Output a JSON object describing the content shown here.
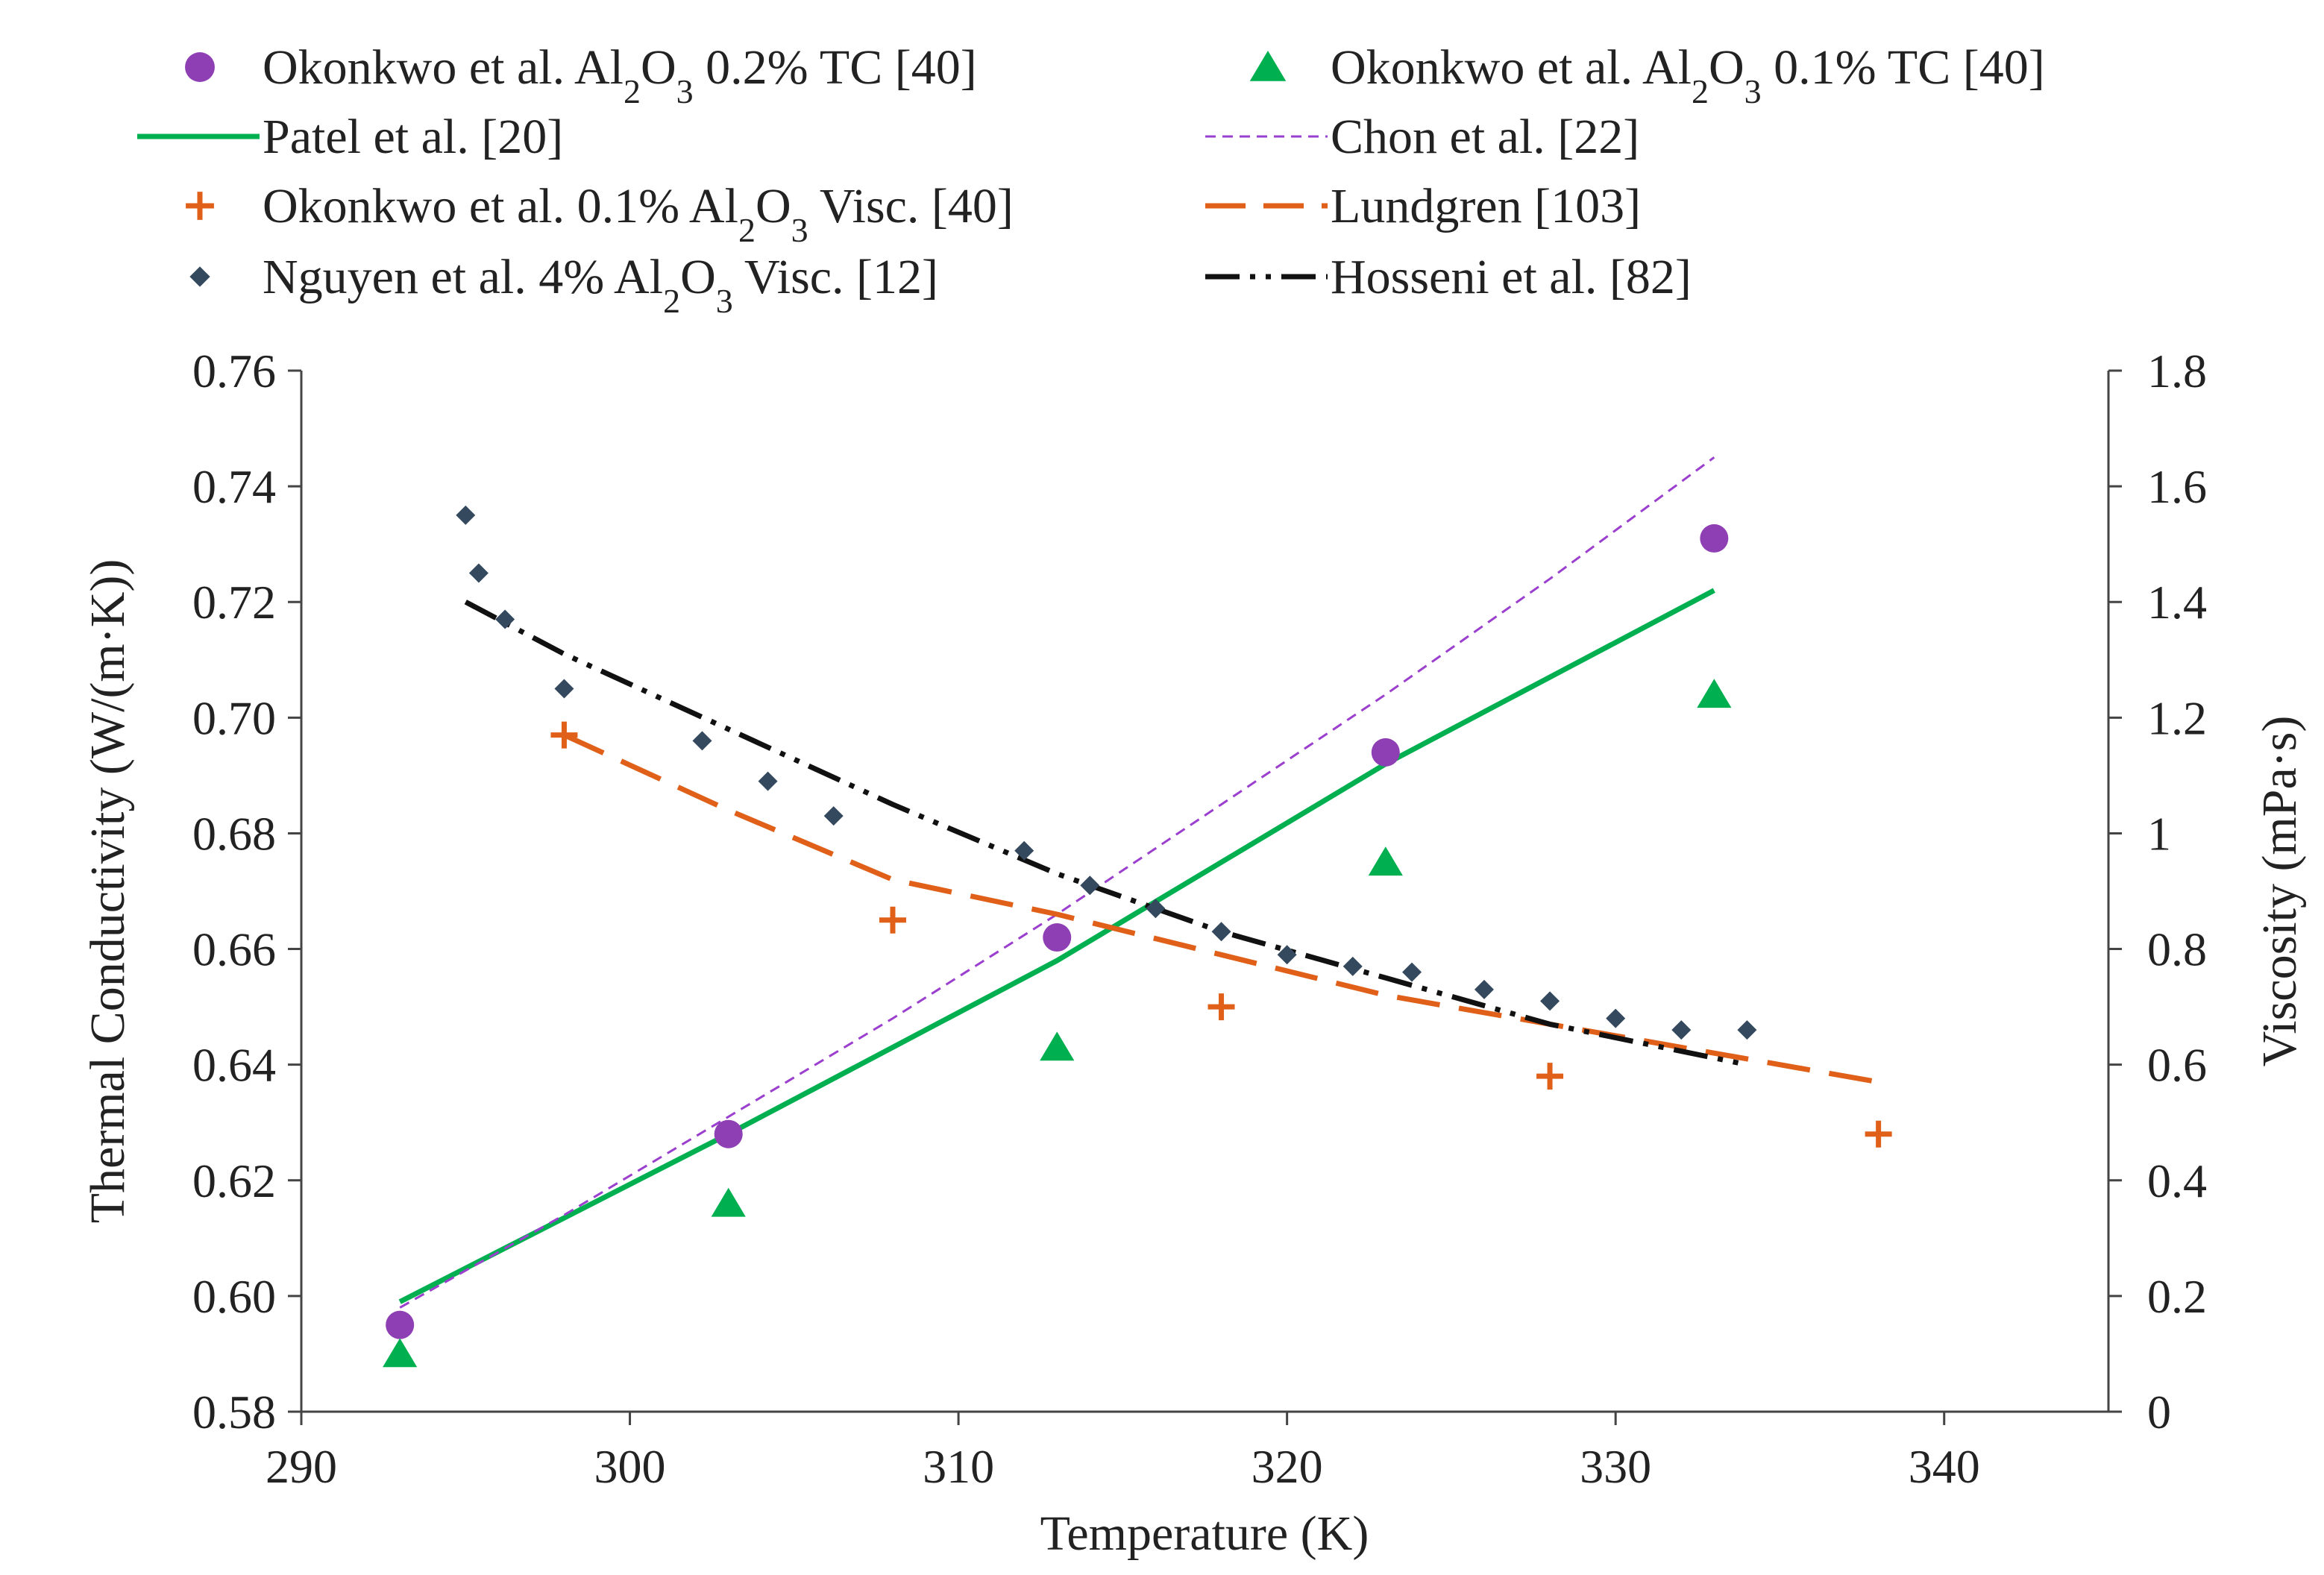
{
  "chart_data": {
    "type": "scatter",
    "xlabel": "Temperature (K)",
    "ylabel_left": "Thermal Conductivity (W/(m·K))",
    "ylabel_right": "Viscosity (mPa·s)",
    "xlim": [
      290,
      345
    ],
    "ylim_left": [
      0.58,
      0.76
    ],
    "ylim_right": [
      0,
      1.8
    ],
    "x_ticks": [
      {
        "value": 290,
        "label": "290"
      },
      {
        "value": 300,
        "label": "300"
      },
      {
        "value": 310,
        "label": "310"
      },
      {
        "value": 320,
        "label": "320"
      },
      {
        "value": 330,
        "label": "330"
      },
      {
        "value": 340,
        "label": "340"
      }
    ],
    "y_ticks_left": [
      {
        "value": 0.58,
        "label": "0.58"
      },
      {
        "value": 0.6,
        "label": "0.60"
      },
      {
        "value": 0.62,
        "label": "0.62"
      },
      {
        "value": 0.64,
        "label": "0.64"
      },
      {
        "value": 0.66,
        "label": "0.66"
      },
      {
        "value": 0.68,
        "label": "0.68"
      },
      {
        "value": 0.7,
        "label": "0.70"
      },
      {
        "value": 0.72,
        "label": "0.72"
      },
      {
        "value": 0.74,
        "label": "0.74"
      },
      {
        "value": 0.76,
        "label": "0.76"
      }
    ],
    "y_ticks_right": [
      {
        "value": 0,
        "label": "0"
      },
      {
        "value": 0.2,
        "label": "0.2"
      },
      {
        "value": 0.4,
        "label": "0.4"
      },
      {
        "value": 0.6,
        "label": "0.6"
      },
      {
        "value": 0.8,
        "label": "0.8"
      },
      {
        "value": 1.0,
        "label": "1"
      },
      {
        "value": 1.2,
        "label": "1.2"
      },
      {
        "value": 1.4,
        "label": "1.4"
      },
      {
        "value": 1.6,
        "label": "1.6"
      },
      {
        "value": 1.8,
        "label": "1.8"
      }
    ],
    "grid": false,
    "legend_position": "top",
    "series": [
      {
        "name": "Okonkwo et al. Al2O3 0.2% TC [40]",
        "label_parts": [
          "Okonkwo et al. Al",
          "2",
          "O",
          "3",
          " 0.2% TC [40]"
        ],
        "kind": "marker",
        "marker": "circle",
        "axis": "left",
        "color": "#8e3fb3",
        "x": [
          293,
          303,
          313,
          323,
          333
        ],
        "y": [
          0.595,
          0.628,
          0.662,
          0.694,
          0.731
        ]
      },
      {
        "name": "Okonkwo et al. Al2O3 0.1% TC [40]",
        "label_parts": [
          "Okonkwo et al. Al",
          "2",
          "O",
          "3",
          " 0.1% TC [40]"
        ],
        "kind": "marker",
        "marker": "triangle",
        "axis": "left",
        "color": "#00b050",
        "x": [
          293,
          303,
          313,
          323,
          333
        ],
        "y": [
          0.59,
          0.616,
          0.643,
          0.675,
          0.704
        ]
      },
      {
        "name": "Patel et al. [20]",
        "label_parts": [
          "Patel et al. [20]"
        ],
        "kind": "line",
        "dash": "solid",
        "axis": "left",
        "color": "#00b050",
        "x": [
          293,
          303,
          313,
          323,
          333
        ],
        "y": [
          0.599,
          0.628,
          0.658,
          0.692,
          0.722
        ]
      },
      {
        "name": "Chon et al. [22]",
        "label_parts": [
          "Chon et al. [22]"
        ],
        "kind": "line",
        "dash": "short-dash",
        "axis": "left",
        "color": "#9b3fcf",
        "x": [
          293,
          298,
          303,
          308,
          313,
          318,
          323,
          328,
          333
        ],
        "y": [
          0.598,
          0.614,
          0.631,
          0.648,
          0.666,
          0.685,
          0.704,
          0.724,
          0.745
        ]
      },
      {
        "name": "Okonkwo et al. 0.1% Al2O3 Visc. [40]",
        "label_parts": [
          "Okonkwo et al. 0.1% Al",
          "2",
          "O",
          "3",
          " Visc. [40]"
        ],
        "kind": "marker",
        "marker": "plus",
        "axis": "right",
        "color": "#e0601a",
        "x": [
          298,
          308,
          318,
          328,
          338
        ],
        "y": [
          1.17,
          0.85,
          0.7,
          0.58,
          0.48
        ]
      },
      {
        "name": "Lundgren [103]",
        "label_parts": [
          "Lundgren [103]"
        ],
        "kind": "line",
        "dash": "long-dash",
        "axis": "right",
        "color": "#e0601a",
        "x": [
          298,
          303,
          308,
          313,
          318,
          323,
          328,
          333,
          338
        ],
        "y": [
          1.17,
          1.04,
          0.92,
          0.86,
          0.79,
          0.72,
          0.67,
          0.62,
          0.57
        ]
      },
      {
        "name": "Nguyen et al. 4% Al2O3 Visc. [12]",
        "label_parts": [
          "Nguyen et al. 4% Al",
          "2",
          "O",
          "3",
          " Visc. [12]"
        ],
        "kind": "marker",
        "marker": "diamond",
        "axis": "right",
        "color": "#34495e",
        "x": [
          295,
          295.4,
          296.2,
          298,
          302.2,
          304.2,
          306.2,
          312,
          314,
          316,
          318,
          320,
          322,
          323.8,
          326,
          328,
          330,
          332,
          334
        ],
        "y": [
          1.55,
          1.45,
          1.37,
          1.25,
          1.16,
          1.09,
          1.03,
          0.97,
          0.91,
          0.87,
          0.83,
          0.79,
          0.77,
          0.76,
          0.73,
          0.71,
          0.68,
          0.66,
          0.66
        ]
      },
      {
        "name": "Hosseni et al. [82]",
        "label_parts": [
          "Hosseni et al. [82]"
        ],
        "kind": "line",
        "dash": "dash-dot-dot",
        "axis": "right",
        "color": "#111111",
        "x": [
          295,
          298,
          303,
          308,
          313,
          318,
          323,
          328,
          334
        ],
        "y": [
          1.4,
          1.31,
          1.18,
          1.05,
          0.93,
          0.83,
          0.75,
          0.67,
          0.6
        ]
      }
    ]
  }
}
